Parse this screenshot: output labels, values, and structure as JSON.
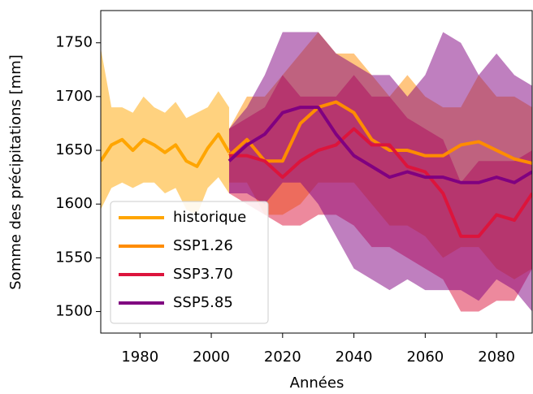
{
  "chart_data": {
    "type": "line",
    "xlabel": "Années",
    "ylabel": "Somme des précipitations [mm]",
    "xlim": [
      1969,
      2090
    ],
    "ylim": [
      1480,
      1780
    ],
    "xticks": [
      1980,
      2000,
      2020,
      2040,
      2060,
      2080
    ],
    "yticks": [
      1500,
      1550,
      1600,
      1650,
      1700,
      1750
    ],
    "legend": "lower left",
    "series": [
      {
        "name": "historique",
        "color": "#ffa500",
        "x": [
          1969,
          1972,
          1975,
          1978,
          1981,
          1984,
          1987,
          1990,
          1993,
          1996,
          1999,
          2002,
          2005
        ],
        "values": [
          1640,
          1655,
          1660,
          1650,
          1660,
          1655,
          1648,
          1655,
          1640,
          1635,
          1652,
          1665,
          1648
        ],
        "upper": [
          1745,
          1690,
          1690,
          1685,
          1700,
          1690,
          1685,
          1695,
          1680,
          1685,
          1690,
          1705,
          1690
        ],
        "lower": [
          1595,
          1615,
          1620,
          1615,
          1620,
          1620,
          1610,
          1615,
          1595,
          1590,
          1615,
          1625,
          1610
        ]
      },
      {
        "name": "SSP1.26",
        "color": "#ff8c00",
        "x": [
          2005,
          2010,
          2015,
          2020,
          2025,
          2030,
          2035,
          2040,
          2045,
          2050,
          2055,
          2060,
          2065,
          2070,
          2075,
          2080,
          2085,
          2090
        ],
        "values": [
          1645,
          1660,
          1640,
          1640,
          1675,
          1690,
          1695,
          1685,
          1660,
          1650,
          1650,
          1645,
          1645,
          1655,
          1658,
          1650,
          1642,
          1638
        ],
        "upper": [
          1670,
          1700,
          1700,
          1720,
          1740,
          1760,
          1740,
          1740,
          1720,
          1700,
          1720,
          1700,
          1690,
          1690,
          1720,
          1700,
          1700,
          1690
        ],
        "lower": [
          1620,
          1620,
          1590,
          1590,
          1600,
          1620,
          1620,
          1620,
          1600,
          1580,
          1580,
          1570,
          1550,
          1560,
          1560,
          1540,
          1530,
          1540
        ]
      },
      {
        "name": "SSP3.70",
        "color": "#dc143c",
        "x": [
          2005,
          2010,
          2015,
          2020,
          2025,
          2030,
          2035,
          2040,
          2045,
          2050,
          2055,
          2060,
          2065,
          2070,
          2075,
          2080,
          2085,
          2090
        ],
        "values": [
          1645,
          1645,
          1640,
          1625,
          1640,
          1650,
          1655,
          1670,
          1655,
          1655,
          1635,
          1630,
          1610,
          1570,
          1570,
          1590,
          1585,
          1610
        ],
        "upper": [
          1670,
          1680,
          1690,
          1720,
          1700,
          1700,
          1700,
          1720,
          1700,
          1700,
          1680,
          1670,
          1660,
          1620,
          1640,
          1640,
          1640,
          1650
        ],
        "lower": [
          1610,
          1600,
          1590,
          1580,
          1580,
          1590,
          1590,
          1580,
          1560,
          1560,
          1550,
          1540,
          1530,
          1500,
          1500,
          1510,
          1510,
          1540
        ]
      },
      {
        "name": "SSP5.85",
        "color": "#800080",
        "x": [
          2005,
          2010,
          2015,
          2020,
          2025,
          2030,
          2035,
          2040,
          2045,
          2050,
          2055,
          2060,
          2065,
          2070,
          2075,
          2080,
          2085,
          2090
        ],
        "values": [
          1640,
          1655,
          1665,
          1685,
          1690,
          1690,
          1665,
          1645,
          1635,
          1625,
          1630,
          1625,
          1625,
          1620,
          1620,
          1625,
          1620,
          1630
        ],
        "upper": [
          1670,
          1690,
          1720,
          1760,
          1760,
          1760,
          1740,
          1730,
          1720,
          1720,
          1700,
          1720,
          1760,
          1750,
          1720,
          1740,
          1720,
          1710
        ],
        "lower": [
          1610,
          1610,
          1600,
          1620,
          1620,
          1600,
          1570,
          1540,
          1530,
          1520,
          1530,
          1520,
          1520,
          1520,
          1510,
          1530,
          1520,
          1500
        ]
      }
    ]
  }
}
